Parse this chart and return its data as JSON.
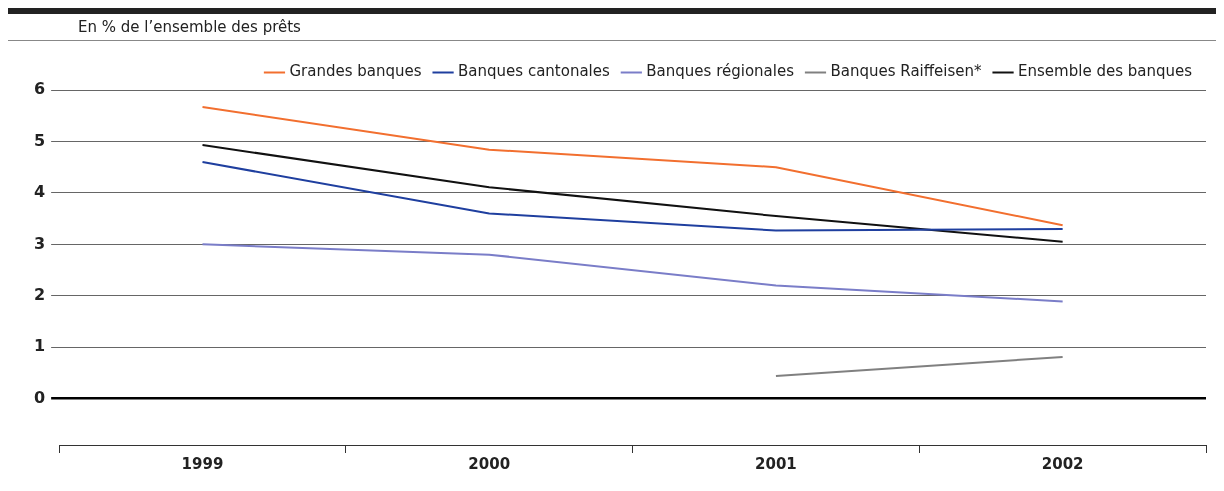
{
  "chart_data": {
    "type": "line",
    "subtitle": "En % de l’ensemble des prêts",
    "categories": [
      "1999",
      "2000",
      "2001",
      "2002"
    ],
    "series": [
      {
        "name": "Grandes banques",
        "color": "#f26f2f",
        "values": [
          5.67,
          4.84,
          4.5,
          3.37
        ]
      },
      {
        "name": "Banques cantonales",
        "color": "#1f3f9f",
        "values": [
          4.6,
          3.6,
          3.27,
          3.3
        ]
      },
      {
        "name": "Banques régionales",
        "color": "#7a7dc8",
        "values": [
          3.0,
          2.8,
          2.2,
          1.89
        ]
      },
      {
        "name": "Banques Raiffeisen*",
        "color": "#808080",
        "values": [
          null,
          null,
          0.44,
          0.81
        ]
      },
      {
        "name": "Ensemble des banques",
        "color": "#111111",
        "values": [
          4.93,
          4.11,
          3.55,
          3.05
        ]
      }
    ],
    "ylim": [
      -0.9,
      6
    ],
    "yticks": [
      0,
      1,
      2,
      3,
      4,
      5,
      6
    ],
    "grid": "y",
    "legend": "top right",
    "marker": "none",
    "line_style": "solid"
  }
}
